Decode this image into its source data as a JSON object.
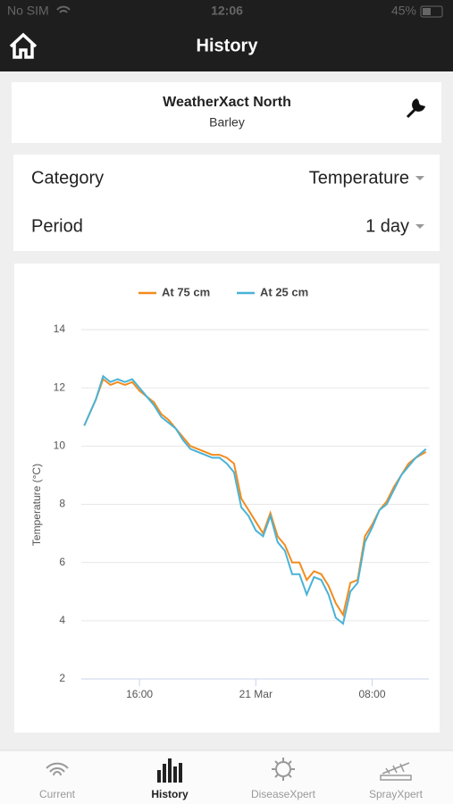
{
  "status_bar": {
    "carrier": "No SIM",
    "time": "12:06",
    "battery": "45%"
  },
  "header": {
    "title": "History"
  },
  "station": {
    "name": "WeatherXact North",
    "crop": "Barley"
  },
  "filters": [
    {
      "label": "Category",
      "value": "Temperature"
    },
    {
      "label": "Period",
      "value": "1 day"
    }
  ],
  "chart_data": {
    "type": "line",
    "ylabel": "Temperature (°C)",
    "x": [
      -11.8,
      -11,
      -10.5,
      -10,
      -9.5,
      -9,
      -8.5,
      -8,
      -7.5,
      -7,
      -6.5,
      -6,
      -5.5,
      -5,
      -4.5,
      -4,
      -3.5,
      -3,
      -2.5,
      -2,
      -1.5,
      -1,
      -0.5,
      0,
      0.5,
      1,
      1.5,
      2,
      2.5,
      3,
      3.5,
      4,
      4.5,
      5,
      5.5,
      6,
      6.5,
      7,
      7.5,
      8,
      8.5,
      9,
      9.5,
      10,
      10.5,
      11,
      11.7
    ],
    "series": [
      {
        "name": "At 75 cm",
        "color": "#f28c1e",
        "values": [
          10.7,
          11.6,
          12.3,
          12.1,
          12.2,
          12.1,
          12.2,
          11.9,
          11.7,
          11.5,
          11.1,
          10.9,
          10.6,
          10.3,
          10.0,
          9.9,
          9.8,
          9.7,
          9.7,
          9.6,
          9.4,
          8.2,
          7.8,
          7.4,
          7.0,
          7.7,
          6.9,
          6.6,
          6.0,
          6.0,
          5.4,
          5.7,
          5.6,
          5.2,
          4.6,
          4.2,
          5.3,
          5.4,
          6.9,
          7.3,
          7.8,
          8.1,
          8.6,
          9.0,
          9.4,
          9.6,
          9.8
        ]
      },
      {
        "name": "At 25 cm",
        "color": "#4ab3d6",
        "values": [
          10.7,
          11.6,
          12.4,
          12.2,
          12.3,
          12.2,
          12.3,
          12.0,
          11.7,
          11.4,
          11.0,
          10.8,
          10.6,
          10.2,
          9.9,
          9.8,
          9.7,
          9.6,
          9.6,
          9.4,
          9.1,
          7.9,
          7.6,
          7.1,
          6.9,
          7.6,
          6.7,
          6.4,
          5.6,
          5.6,
          4.9,
          5.5,
          5.4,
          4.9,
          4.1,
          3.9,
          5.0,
          5.3,
          6.7,
          7.2,
          7.8,
          8.0,
          8.5,
          9.0,
          9.3,
          9.6,
          9.9
        ]
      }
    ],
    "xlim": [
      -12,
      11.9
    ],
    "xticks": [
      {
        "value": -8,
        "label": "16:00"
      },
      {
        "value": 0,
        "label": "21 Mar"
      },
      {
        "value": 8,
        "label": "08:00"
      }
    ],
    "ylim": [
      2,
      14
    ],
    "yticks": [
      2,
      4,
      6,
      8,
      10,
      12,
      14
    ],
    "grid": true
  },
  "tabs": [
    {
      "label": "Current"
    },
    {
      "label": "History"
    },
    {
      "label": "DiseaseXpert"
    },
    {
      "label": "SprayXpert"
    }
  ]
}
